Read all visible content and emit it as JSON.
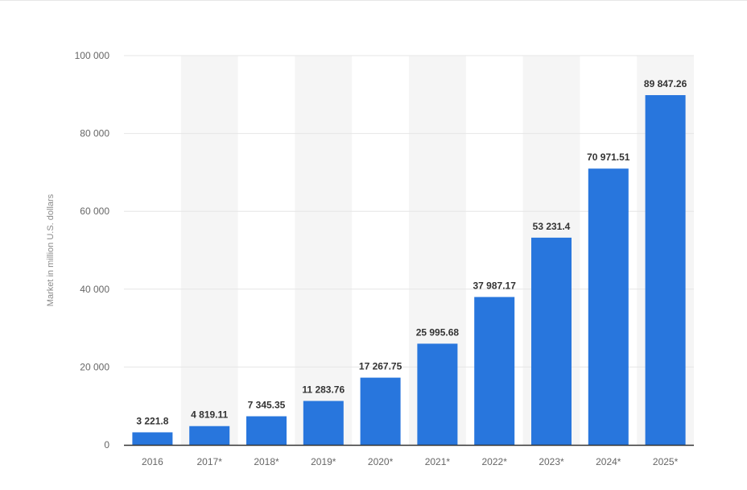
{
  "chart_data": {
    "type": "bar",
    "title": "",
    "xlabel": "",
    "ylabel": "Market in million U.S. dollars",
    "ylim": [
      0,
      100000
    ],
    "yticks": [
      0,
      20000,
      40000,
      60000,
      80000,
      100000
    ],
    "ytick_labels": [
      "0",
      "20 000",
      "40 000",
      "60 000",
      "80 000",
      "100 000"
    ],
    "categories": [
      "2016",
      "2017*",
      "2018*",
      "2019*",
      "2020*",
      "2021*",
      "2022*",
      "2023*",
      "2024*",
      "2025*"
    ],
    "values": [
      3221.8,
      4819.11,
      7345.35,
      11283.76,
      17267.75,
      25995.68,
      37987.17,
      53231.4,
      70971.51,
      89847.26
    ],
    "value_labels": [
      "3 221.8",
      "4 819.11",
      "7 345.35",
      "11 283.76",
      "17 267.75",
      "25 995.68",
      "37 987.17",
      "53 231.4",
      "70 971.51",
      "89 847.26"
    ],
    "grid": true,
    "legend": "none",
    "colors": {
      "bar": "#2876dd",
      "band": "#f5f5f5",
      "grid": "#e6e6e6",
      "axis": "#333333"
    }
  }
}
